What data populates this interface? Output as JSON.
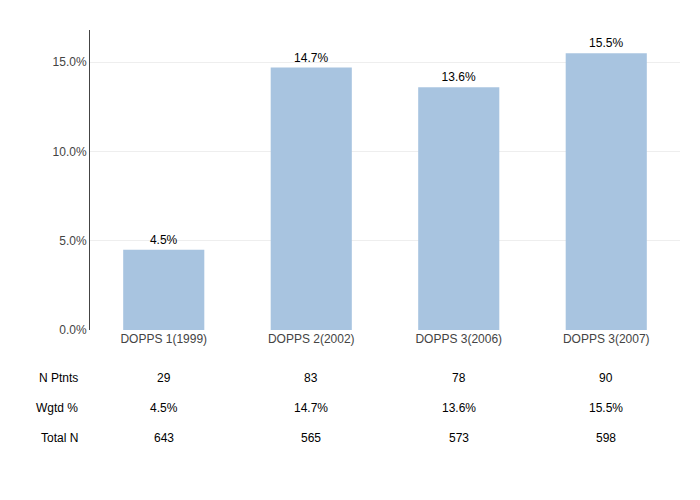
{
  "chart_data": {
    "type": "bar",
    "categories": [
      "DOPPS 1(1999)",
      "DOPPS 2(2002)",
      "DOPPS 3(2006)",
      "DOPPS 3(2007)"
    ],
    "values": [
      4.5,
      14.7,
      13.6,
      15.5
    ],
    "value_labels": [
      "4.5%",
      "14.7%",
      "13.6%",
      "15.5%"
    ],
    "data_labels": true,
    "color": "#a8c4e0",
    "ylim": [
      0,
      16.8
    ],
    "yticks": [
      {
        "value": 0,
        "label": "0.0%"
      },
      {
        "value": 5,
        "label": "5.0%"
      },
      {
        "value": 10,
        "label": "10.0%"
      },
      {
        "value": 15,
        "label": "15.0%"
      }
    ],
    "grid": true,
    "table": [
      {
        "label": "N Ptnts",
        "values": [
          29,
          83,
          78,
          90
        ]
      },
      {
        "label": "Wgtd %",
        "values": [
          4.5,
          14.7,
          13.6,
          15.5
        ],
        "value_labels": [
          "4.5%",
          "14.7%",
          "13.6%",
          "15.5%"
        ]
      },
      {
        "label": "Total N",
        "values": [
          643,
          565,
          573,
          598
        ]
      }
    ]
  }
}
